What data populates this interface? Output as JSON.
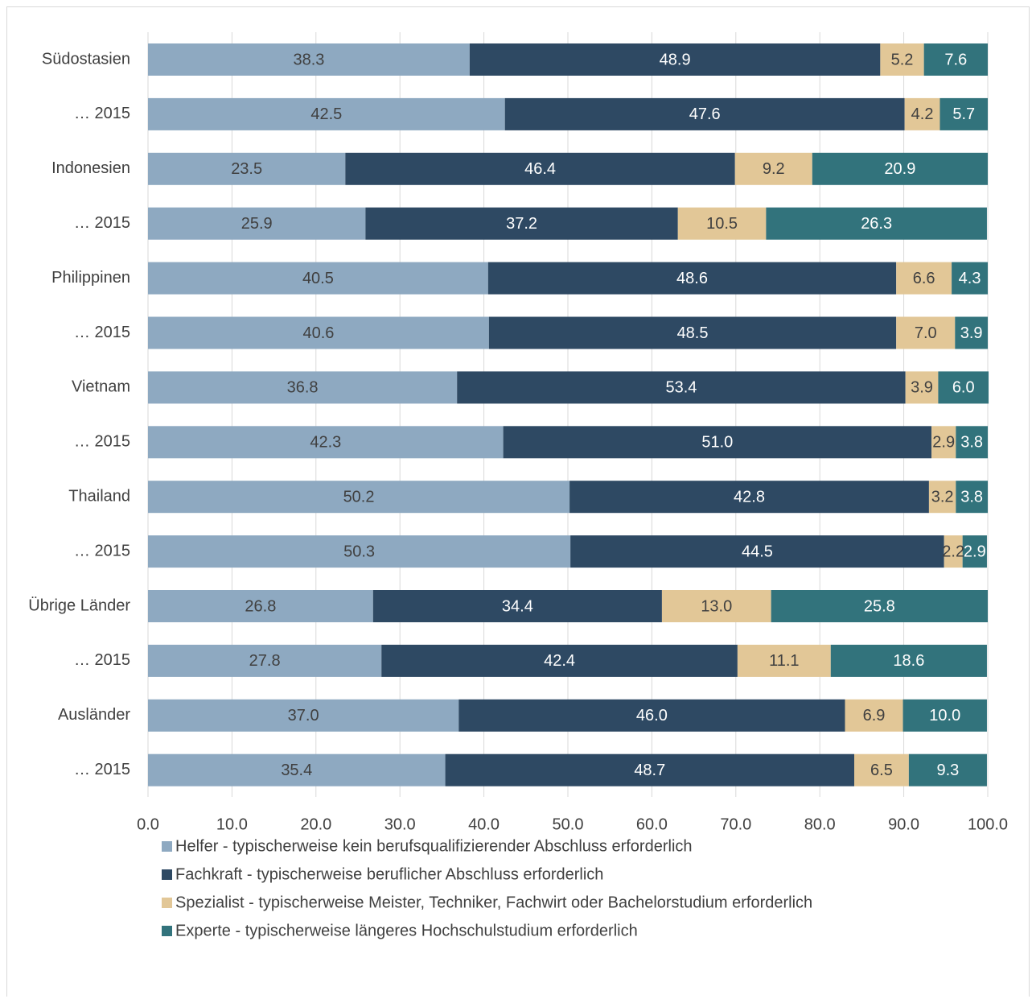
{
  "chart_data": {
    "type": "bar",
    "orientation": "horizontal",
    "stacked": true,
    "title": "",
    "xlim": [
      0,
      100
    ],
    "x_ticks": [
      "0.0",
      "10.0",
      "20.0",
      "30.0",
      "40.0",
      "50.0",
      "60.0",
      "70.0",
      "80.0",
      "90.0",
      "100.0"
    ],
    "grid": true,
    "legend_position": "bottom",
    "categories": [
      "Südostasien",
      "… 2015",
      "Indonesien",
      "… 2015",
      "Philippinen",
      "… 2015",
      "Vietnam",
      "… 2015",
      "Thailand",
      "… 2015",
      "Übrige Länder",
      "… 2015",
      "Ausländer",
      "… 2015"
    ],
    "series": [
      {
        "name": "Helfer - typischerweise kein berufsqualifizierender Abschluss erforderlich",
        "color": "#8EA9C1",
        "label_color": "#404040",
        "values": [
          38.3,
          42.5,
          23.5,
          25.9,
          40.5,
          40.6,
          36.8,
          42.3,
          50.2,
          50.3,
          26.8,
          27.8,
          37.0,
          35.4
        ],
        "labels": [
          "38.3",
          "42.5",
          "23.5",
          "25.9",
          "40.5",
          "40.6",
          "36.8",
          "42.3",
          "50.2",
          "50.3",
          "26.8",
          "27.8",
          "37.0",
          "35.4"
        ]
      },
      {
        "name": "Fachkraft - typischerweise beruflicher Abschluss erforderlich",
        "color": "#2E4963",
        "label_color": "#ffffff",
        "values": [
          48.9,
          47.6,
          46.4,
          37.2,
          48.6,
          48.5,
          53.4,
          51.0,
          42.8,
          44.5,
          34.4,
          42.4,
          46.0,
          48.7
        ],
        "labels": [
          "48.9",
          "47.6",
          "46.4",
          "37.2",
          "48.6",
          "48.5",
          "53.4",
          "51.0",
          "42.8",
          "44.5",
          "34.4",
          "42.4",
          "46.0",
          "48.7"
        ]
      },
      {
        "name": "Spezialist - typischerweise Meister, Techniker, Fachwirt oder Bachelorstudium erforderlich",
        "color": "#E2C797",
        "label_color": "#404040",
        "values": [
          5.2,
          4.2,
          9.2,
          10.5,
          6.6,
          7.0,
          3.9,
          2.9,
          3.2,
          2.2,
          13.0,
          11.1,
          6.9,
          6.5
        ],
        "labels": [
          "5.2",
          "4.2",
          "9.2",
          "10.5",
          "6.6",
          "7.0",
          "3.9",
          "2.9",
          "3.2",
          "2.2",
          "13.0",
          "11.1",
          "6.9",
          "6.5"
        ]
      },
      {
        "name": "Experte - typischerweise längeres Hochschulstudium erforderlich",
        "color": "#32737C",
        "label_color": "#ffffff",
        "values": [
          7.6,
          5.7,
          20.9,
          26.3,
          4.3,
          3.9,
          6.0,
          3.8,
          3.8,
          2.9,
          25.8,
          18.6,
          10.0,
          9.3
        ],
        "labels": [
          "7.6",
          "5.7",
          "20.9",
          "26.3",
          "4.3",
          "3.9",
          "6.0",
          "3.8",
          "3.8",
          "2.9",
          "25.8",
          "18.6",
          "10.0",
          "9.3"
        ]
      }
    ]
  }
}
